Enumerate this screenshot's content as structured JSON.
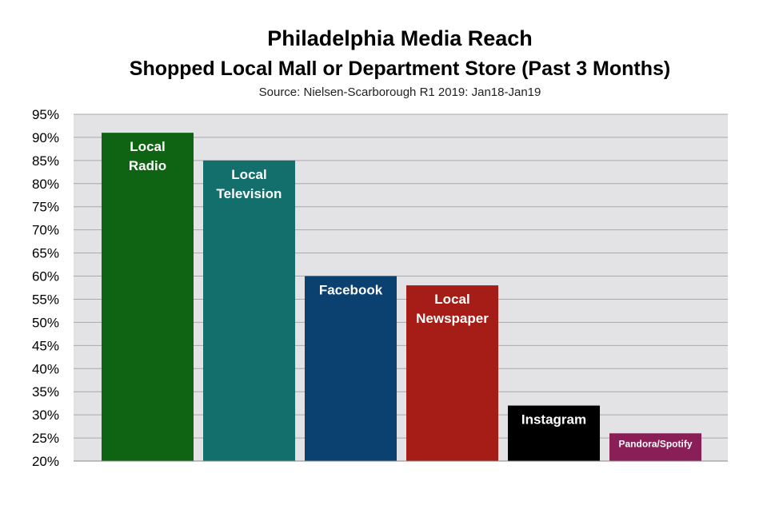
{
  "chart_data": {
    "type": "bar",
    "title": "Philadelphia Media Reach",
    "subtitle": "Shopped Local Mall or Department Store (Past 3 Months)",
    "source": "Source: Nielsen-Scarborough R1 2019: Jan18-Jan19",
    "xlabel": "",
    "ylabel": "",
    "ylim": [
      20,
      95
    ],
    "y_ticks": [
      "20%",
      "25%",
      "30%",
      "35%",
      "40%",
      "45%",
      "50%",
      "55%",
      "60%",
      "65%",
      "70%",
      "75%",
      "80%",
      "85%",
      "90%",
      "95%"
    ],
    "grid": true,
    "categories": [
      {
        "lines": [
          "Local",
          "Radio"
        ],
        "value": 91,
        "color": "#0f6414"
      },
      {
        "lines": [
          "Local",
          "Television"
        ],
        "value": 85,
        "color": "#126f6b"
      },
      {
        "lines": [
          "Facebook"
        ],
        "value": 60,
        "color": "#0a4170"
      },
      {
        "lines": [
          "Local",
          "Newspaper"
        ],
        "value": 58,
        "color": "#a61c16"
      },
      {
        "lines": [
          "Instagram"
        ],
        "value": 32,
        "color": "#000000"
      },
      {
        "lines": [
          "Pandora/Spotify"
        ],
        "value": 26,
        "color": "#8a1f57"
      }
    ],
    "plot_background": "#e3e3e6",
    "grid_color": "#a8a8a8"
  }
}
